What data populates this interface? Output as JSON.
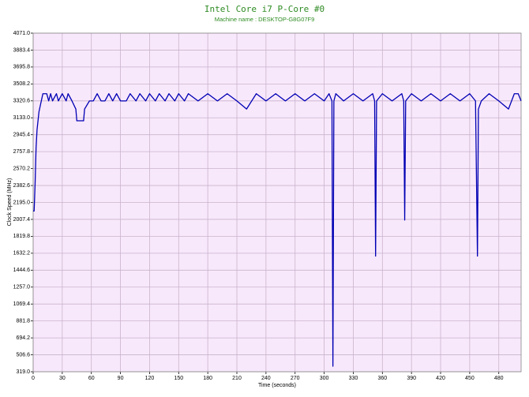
{
  "chart_data": {
    "type": "line",
    "title": "Intel Core i7 P-Core #0",
    "subtitle": "Machine name : DESKTOP-G8G07F9",
    "x_label": "Time (seconds)",
    "y_label": "Clock Speed (MHz)",
    "xlim": [
      0,
      503
    ],
    "ylim": [
      319,
      4071
    ],
    "xticks": [
      0,
      30,
      60,
      90,
      120,
      150,
      180,
      210,
      240,
      270,
      300,
      330,
      360,
      390,
      420,
      450,
      480
    ],
    "yticks": [
      {
        "value": 319,
        "label": "319.0"
      },
      506.6,
      694.2,
      881.8,
      1069.4,
      {
        "value": 1257,
        "label": "1257.0"
      },
      1444.6,
      1632.2,
      1819.8,
      2007.4,
      {
        "value": 2195,
        "label": "2195.0"
      },
      2382.6,
      2570.2,
      2757.8,
      2945.4,
      {
        "value": 3133,
        "label": "3133.0"
      },
      3320.6,
      3508.2,
      3695.8,
      3883.4,
      {
        "value": 4071,
        "label": "4071.0"
      }
    ],
    "grid": true,
    "x": [
      0,
      1,
      2,
      3,
      4,
      5,
      6,
      8,
      10,
      14,
      16,
      18,
      20,
      24,
      26,
      30,
      34,
      36,
      40,
      44,
      45,
      52,
      53,
      58,
      62,
      66,
      70,
      74,
      78,
      82,
      86,
      90,
      96,
      100,
      106,
      110,
      116,
      120,
      126,
      130,
      136,
      140,
      146,
      150,
      156,
      160,
      170,
      180,
      190,
      200,
      210,
      220,
      230,
      240,
      250,
      260,
      270,
      280,
      290,
      300,
      305,
      308,
      309,
      310,
      312,
      320,
      330,
      340,
      350,
      352,
      353,
      354,
      360,
      370,
      380,
      382,
      383,
      384,
      390,
      400,
      410,
      420,
      430,
      440,
      450,
      456,
      458,
      459,
      462,
      470,
      480,
      490,
      496,
      500,
      503
    ],
    "series": [
      {
        "color": "#0000b4",
        "values": [
          2100,
          2100,
          2400,
          2800,
          3000,
          3100,
          3200,
          3300,
          3400,
          3400,
          3320,
          3400,
          3320,
          3400,
          3320,
          3400,
          3320,
          3400,
          3320,
          3230,
          3100,
          3100,
          3230,
          3320,
          3320,
          3400,
          3320,
          3320,
          3400,
          3320,
          3400,
          3320,
          3320,
          3400,
          3320,
          3400,
          3320,
          3400,
          3320,
          3400,
          3320,
          3400,
          3320,
          3400,
          3320,
          3400,
          3320,
          3400,
          3320,
          3400,
          3320,
          3230,
          3400,
          3320,
          3400,
          3320,
          3400,
          3320,
          3400,
          3320,
          3400,
          3320,
          380,
          3320,
          3400,
          3320,
          3400,
          3320,
          3400,
          3320,
          1600,
          3320,
          3400,
          3320,
          3400,
          3320,
          2000,
          3320,
          3400,
          3320,
          3400,
          3320,
          3400,
          3320,
          3400,
          3320,
          1600,
          3230,
          3320,
          3400,
          3320,
          3230,
          3400,
          3400,
          3320
        ]
      }
    ]
  }
}
